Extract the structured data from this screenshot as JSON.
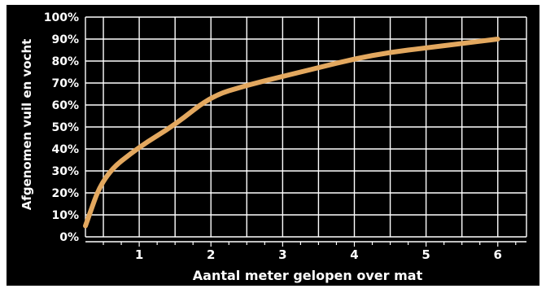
{
  "chart_data": {
    "type": "line",
    "title": "",
    "xlabel": "Aantal meter gelopen over mat",
    "ylabel": "Afgenomen vuil en vocht",
    "x_ticks": [
      "1",
      "2",
      "3",
      "4",
      "5",
      "6"
    ],
    "y_ticks": [
      "0%",
      "10%",
      "20%",
      "30%",
      "40%",
      "50%",
      "60%",
      "70%",
      "80%",
      "90%",
      "100%"
    ],
    "xlim": [
      0.25,
      6.4
    ],
    "ylim": [
      0,
      100
    ],
    "grid": true,
    "series": [
      {
        "values_x": [
          0.25,
          0.5,
          1.0,
          1.5,
          2.0,
          2.5,
          3.0,
          3.5,
          4.0,
          4.5,
          5.0,
          5.5,
          6.0
        ],
        "values_y": [
          5,
          28,
          41,
          51,
          64,
          69,
          73,
          77,
          81,
          84,
          86,
          88,
          90
        ]
      }
    ],
    "colors": {
      "background": "#000000",
      "plot_background": "#000000",
      "grid": "#ffffff",
      "line": "#e3a85f",
      "text": "#ffffff"
    }
  }
}
